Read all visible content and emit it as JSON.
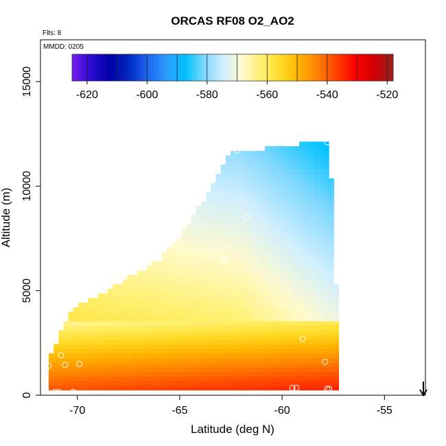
{
  "chart_data": {
    "type": "heatmap",
    "title": "ORCAS RF08 O2_AO2",
    "flights_note": "Flts: 8",
    "date_note": "MMDD: 0205",
    "xlabel": "Latitude (deg N)",
    "ylabel": "Altitude (m)",
    "xlim": [
      -71.8,
      -53.0
    ],
    "ylim": [
      0,
      17000
    ],
    "x_ticks": [
      "-70",
      "-65",
      "-60",
      "-55"
    ],
    "x_tick_values": [
      -70,
      -65,
      -60,
      -55
    ],
    "y_ticks": [
      "0",
      "5000",
      "10000",
      "15000"
    ],
    "y_tick_values": [
      0,
      5000,
      10000,
      15000
    ],
    "grid": false,
    "colorbar": {
      "placement": "top-inside",
      "range": [
        -625,
        -518
      ],
      "tick_labels": [
        "-620",
        "-600",
        "-580",
        "-560",
        "-540",
        "-520"
      ],
      "tick_values": [
        -620,
        -600,
        -580,
        -560,
        -540,
        -520
      ],
      "colors": [
        "#7a1cf0",
        "#2a0ad0",
        "#0000a8",
        "#0028c0",
        "#1e64f0",
        "#2e9cff",
        "#00c2ff",
        "#80d8ff",
        "#cfeeff",
        "#fffacd",
        "#fff070",
        "#ffdc28",
        "#ffb400",
        "#ff8000",
        "#ff4000",
        "#ff0000",
        "#d00000",
        "#981e1e"
      ]
    },
    "field": {
      "bottom_layer_value_near_surface": -535,
      "mid_altitude_value": -562,
      "upper_value_north": -580,
      "envelope": [
        {
          "lat": -71.3,
          "alt": 300
        },
        {
          "lat": -71.3,
          "alt": 2000
        },
        {
          "lat": -70.6,
          "alt": 3500
        },
        {
          "lat": -70.2,
          "alt": 4200
        },
        {
          "lat": -68.2,
          "alt": 5200
        },
        {
          "lat": -66.0,
          "alt": 6500
        },
        {
          "lat": -64.7,
          "alt": 8000
        },
        {
          "lat": -63.7,
          "alt": 9600
        },
        {
          "lat": -62.5,
          "alt": 11600
        },
        {
          "lat": -60.0,
          "alt": 11900
        },
        {
          "lat": -57.8,
          "alt": 12200
        },
        {
          "lat": -57.5,
          "alt": 9500
        },
        {
          "lat": -57.4,
          "alt": 6500
        },
        {
          "lat": -57.3,
          "alt": 3500
        },
        {
          "lat": -57.3,
          "alt": 300
        }
      ]
    },
    "observations": [
      {
        "lat": -71.1,
        "alt": 150
      },
      {
        "lat": -70.9,
        "alt": 150
      },
      {
        "lat": -70.2,
        "alt": 150
      },
      {
        "lat": -70.8,
        "alt": 1900
      },
      {
        "lat": -70.6,
        "alt": 1450
      },
      {
        "lat": -69.9,
        "alt": 1500
      },
      {
        "lat": -71.4,
        "alt": 1400
      },
      {
        "lat": -62.8,
        "alt": 6500
      },
      {
        "lat": -61.7,
        "alt": 8500
      },
      {
        "lat": -59.5,
        "alt": 350
      },
      {
        "lat": -59.3,
        "alt": 350
      },
      {
        "lat": -57.8,
        "alt": 300
      },
      {
        "lat": -57.7,
        "alt": 300
      },
      {
        "lat": -57.9,
        "alt": 1600
      },
      {
        "lat": -59.0,
        "alt": 2700
      },
      {
        "lat": -57.8,
        "alt": 12100
      },
      {
        "lat": -62.2,
        "alt": 11700
      }
    ],
    "wind_arrow": {
      "lat": -53.1,
      "direction": "down"
    }
  }
}
